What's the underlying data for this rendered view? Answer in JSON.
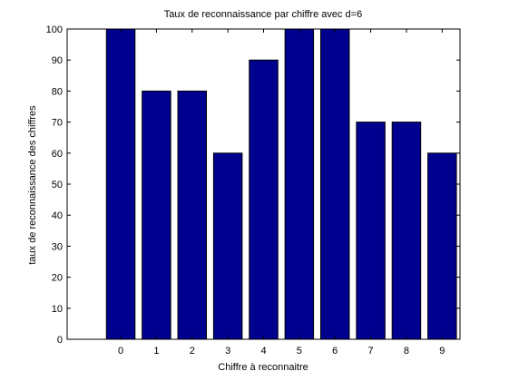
{
  "chart_data": {
    "type": "bar",
    "title": "Taux de reconnaissance par chiffre avec d=6",
    "xlabel": "Chiffre à reconnaitre",
    "ylabel": "taux de reconnaissance des chiffres",
    "categories": [
      "0",
      "1",
      "2",
      "3",
      "4",
      "5",
      "6",
      "7",
      "8",
      "9"
    ],
    "values": [
      100,
      80,
      80,
      60,
      90,
      100,
      100,
      70,
      70,
      60
    ],
    "xlim": [
      -1.5,
      9.5
    ],
    "ylim": [
      0,
      100
    ],
    "yticks": [
      0,
      10,
      20,
      30,
      40,
      50,
      60,
      70,
      80,
      90,
      100
    ],
    "grid": false,
    "bar_color": "#00008f",
    "edge_color": "#000000"
  }
}
